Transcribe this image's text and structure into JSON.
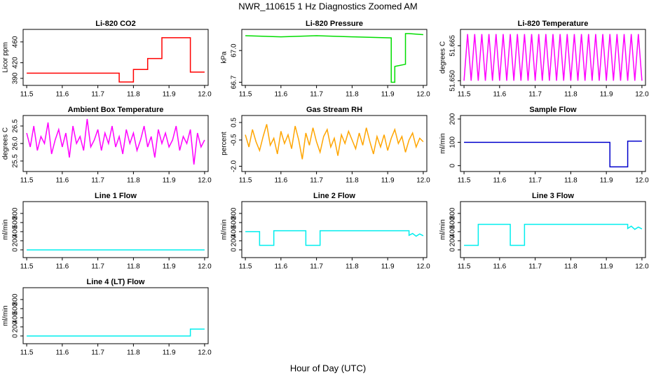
{
  "title": "NWR_110615  1 Hz Diagnostics Zoomed AM",
  "xlabel": "Hour of Day (UTC)",
  "chart_data": [
    {
      "type": "line",
      "title": "Li-820 CO2",
      "ylabel": "Licor ppm",
      "color": "#ff0000",
      "x": [
        11.5,
        11.76,
        11.76,
        11.8,
        11.8,
        11.84,
        11.84,
        11.88,
        11.88,
        11.96,
        11.96,
        12.0
      ],
      "values": [
        400,
        400,
        383,
        383,
        407,
        407,
        428,
        428,
        468,
        468,
        402,
        402
      ],
      "xlim": [
        11.49,
        12.01
      ],
      "xticks": [
        11.5,
        11.6,
        11.7,
        11.8,
        11.9,
        {
          "value": 12,
          "label": "12.0"
        }
      ],
      "ylim": [
        376.5,
        484
      ],
      "yticks": [
        390,
        420,
        460
      ]
    },
    {
      "type": "line",
      "title": "Li-820 Pressure",
      "ylabel": "kPa",
      "color": "#00dd00",
      "x": [
        11.5,
        11.6,
        11.7,
        11.8,
        11.91,
        11.91,
        11.92,
        11.92,
        11.95,
        11.95,
        11.96,
        12.0
      ],
      "values": [
        67.14,
        67.13,
        67.14,
        67.13,
        67.12,
        66.7,
        66.7,
        66.85,
        66.87,
        67.16,
        67.16,
        67.15
      ],
      "xlim": [
        11.49,
        12.01
      ],
      "xticks": [
        11.5,
        11.6,
        11.7,
        11.8,
        11.9,
        {
          "value": 12,
          "label": "12.0"
        }
      ],
      "ylim": [
        66.67,
        67.2
      ],
      "yticks": [
        66.7,
        {
          "value": 67,
          "label": "67.0"
        }
      ]
    },
    {
      "type": "line",
      "title": "Li-820 Temperature",
      "ylabel": "degrees C",
      "color": "#ff00ff",
      "x": [
        11.5,
        11.51,
        11.52,
        11.53,
        11.54,
        11.55,
        11.56,
        11.57,
        11.58,
        11.59,
        11.6,
        11.61,
        11.62,
        11.63,
        11.64,
        11.65,
        11.66,
        11.67,
        11.68,
        11.69,
        11.7,
        11.71,
        11.72,
        11.73,
        11.74,
        11.75,
        11.76,
        11.77,
        11.78,
        11.79,
        11.8,
        11.81,
        11.82,
        11.83,
        11.84,
        11.85,
        11.86,
        11.87,
        11.88,
        11.89,
        11.9,
        11.91,
        11.92,
        11.93,
        11.94,
        11.95,
        11.96,
        11.97,
        11.98,
        11.99,
        12.0
      ],
      "values": [
        51.65,
        51.67,
        51.65,
        51.67,
        51.65,
        51.67,
        51.65,
        51.67,
        51.65,
        51.67,
        51.65,
        51.67,
        51.65,
        51.67,
        51.65,
        51.67,
        51.65,
        51.67,
        51.65,
        51.67,
        51.65,
        51.67,
        51.65,
        51.67,
        51.65,
        51.67,
        51.65,
        51.67,
        51.65,
        51.67,
        51.65,
        51.67,
        51.65,
        51.67,
        51.65,
        51.67,
        51.65,
        51.67,
        51.65,
        51.67,
        51.65,
        51.67,
        51.65,
        51.67,
        51.65,
        51.67,
        51.65,
        51.67,
        51.65,
        51.67,
        51.65
      ],
      "xlim": [
        11.49,
        12.01
      ],
      "xticks": [
        11.5,
        11.6,
        11.7,
        11.8,
        11.9,
        {
          "value": 12,
          "label": "12.0"
        }
      ],
      "ylim": [
        51.648,
        51.672
      ],
      "yticks": [
        {
          "value": 51.65,
          "label": "51.650"
        },
        51.665
      ]
    },
    {
      "type": "line",
      "title": "Ambient Box Temperature",
      "ylabel": "degrees C",
      "color": "#ff00ff",
      "x": [
        11.5,
        11.51,
        11.52,
        11.53,
        11.54,
        11.55,
        11.56,
        11.57,
        11.58,
        11.59,
        11.6,
        11.61,
        11.62,
        11.63,
        11.64,
        11.65,
        11.66,
        11.67,
        11.68,
        11.69,
        11.7,
        11.71,
        11.72,
        11.73,
        11.74,
        11.75,
        11.76,
        11.77,
        11.78,
        11.79,
        11.8,
        11.81,
        11.82,
        11.83,
        11.84,
        11.85,
        11.86,
        11.87,
        11.88,
        11.89,
        11.9,
        11.91,
        11.92,
        11.93,
        11.94,
        11.95,
        11.96,
        11.97,
        11.98,
        11.99,
        12.0
      ],
      "values": [
        26.3,
        25.9,
        26.5,
        25.8,
        26.2,
        26.0,
        26.6,
        25.7,
        26.1,
        26.4,
        25.9,
        26.3,
        25.6,
        26.5,
        26.0,
        26.2,
        25.8,
        26.7,
        25.9,
        26.1,
        26.4,
        25.8,
        26.3,
        26.0,
        26.5,
        25.9,
        26.2,
        25.7,
        26.4,
        26.0,
        26.3,
        25.8,
        26.1,
        26.5,
        25.9,
        26.2,
        25.6,
        26.4,
        26.0,
        26.3,
        25.9,
        26.1,
        26.5,
        25.8,
        26.2,
        26.0,
        26.4,
        25.4,
        26.3,
        25.9,
        26.1
      ],
      "xlim": [
        11.49,
        12.01
      ],
      "xticks": [
        11.5,
        11.6,
        11.7,
        11.8,
        11.9,
        {
          "value": 12,
          "label": "12.0"
        }
      ],
      "ylim": [
        25.2,
        26.8
      ],
      "yticks": [
        25.5,
        {
          "value": 26,
          "label": "26.0"
        },
        26.5
      ]
    },
    {
      "type": "line",
      "title": "Gas Stream RH",
      "ylabel": "percent",
      "color": "#ffa500",
      "x": [
        11.5,
        11.51,
        11.52,
        11.53,
        11.54,
        11.55,
        11.56,
        11.57,
        11.58,
        11.59,
        11.6,
        11.61,
        11.62,
        11.63,
        11.64,
        11.65,
        11.66,
        11.67,
        11.68,
        11.69,
        11.7,
        11.71,
        11.72,
        11.73,
        11.74,
        11.75,
        11.76,
        11.77,
        11.78,
        11.79,
        11.8,
        11.81,
        11.82,
        11.83,
        11.84,
        11.85,
        11.86,
        11.87,
        11.88,
        11.89,
        11.9,
        11.91,
        11.92,
        11.93,
        11.94,
        11.95,
        11.96,
        11.97,
        11.98,
        11.99,
        12.0
      ],
      "values": [
        -0.2,
        -0.9,
        0.1,
        -0.6,
        -1.1,
        -0.3,
        0.4,
        -0.8,
        -0.4,
        -1.3,
        0.0,
        -0.7,
        -0.2,
        -1.0,
        0.3,
        -0.5,
        -1.6,
        -0.1,
        -0.8,
        0.2,
        -0.6,
        -1.2,
        -0.3,
        0.1,
        -0.9,
        -0.4,
        -1.4,
        -0.2,
        -0.7,
        0.0,
        -0.5,
        -1.0,
        -0.1,
        -0.8,
        0.2,
        -0.6,
        -1.3,
        -0.3,
        -0.9,
        -0.2,
        -1.1,
        -0.4,
        0.1,
        -0.7,
        -0.3,
        -1.2,
        -0.5,
        -0.1,
        -0.9,
        -0.4,
        -0.6
      ],
      "xlim": [
        11.49,
        12.01
      ],
      "xticks": [
        11.5,
        11.6,
        11.7,
        11.8,
        11.9,
        {
          "value": 12,
          "label": "12.0"
        }
      ],
      "ylim": [
        -2.3,
        0.9
      ],
      "yticks": [
        {
          "value": -2,
          "label": "-2.0"
        },
        -0.5,
        0.5
      ]
    },
    {
      "type": "line",
      "title": "Sample Flow",
      "ylabel": "ml/min",
      "color": "#0000cc",
      "x": [
        11.5,
        11.91,
        11.91,
        11.96,
        11.96,
        12.0
      ],
      "values": [
        100,
        100,
        -5,
        -5,
        105,
        105
      ],
      "xlim": [
        11.49,
        12.01
      ],
      "xticks": [
        11.5,
        11.6,
        11.7,
        11.8,
        11.9,
        {
          "value": 12,
          "label": "12.0"
        }
      ],
      "ylim": [
        -25,
        215
      ],
      "yticks": [
        0,
        100,
        200
      ]
    },
    {
      "type": "line",
      "title": "Line 1 Flow",
      "ylabel": "ml/min",
      "color": "#00eeee",
      "x": [
        11.5,
        12.0
      ],
      "values": [
        0,
        0
      ],
      "xlim": [
        11.49,
        12.01
      ],
      "xticks": [
        11.5,
        11.6,
        11.7,
        11.8,
        11.9,
        {
          "value": 12,
          "label": "12.0"
        }
      ],
      "ylim": [
        -170,
        1060
      ],
      "yticks": [
        0,
        200,
        400,
        600,
        800
      ]
    },
    {
      "type": "line",
      "title": "Line 2 Flow",
      "ylabel": "ml/min",
      "color": "#00eeee",
      "x": [
        11.5,
        11.54,
        11.54,
        11.58,
        11.58,
        11.67,
        11.67,
        11.71,
        11.71,
        11.96,
        11.96,
        11.97,
        11.98,
        11.99,
        12.0
      ],
      "values": [
        400,
        400,
        100,
        100,
        420,
        420,
        100,
        100,
        420,
        420,
        320,
        360,
        300,
        350,
        310
      ],
      "xlim": [
        11.49,
        12.01
      ],
      "xticks": [
        11.5,
        11.6,
        11.7,
        11.8,
        11.9,
        {
          "value": 12,
          "label": "12.0"
        }
      ],
      "ylim": [
        -170,
        1060
      ],
      "yticks": [
        0,
        200,
        400,
        600,
        800
      ]
    },
    {
      "type": "line",
      "title": "Line 3 Flow",
      "ylabel": "ml/min",
      "color": "#00eeee",
      "x": [
        11.5,
        11.54,
        11.54,
        11.63,
        11.63,
        11.67,
        11.67,
        11.96,
        11.96,
        11.97,
        11.98,
        11.99,
        12.0
      ],
      "values": [
        100,
        100,
        560,
        560,
        100,
        100,
        560,
        560,
        470,
        520,
        450,
        500,
        460
      ],
      "xlim": [
        11.49,
        12.01
      ],
      "xticks": [
        11.5,
        11.6,
        11.7,
        11.8,
        11.9,
        {
          "value": 12,
          "label": "12.0"
        }
      ],
      "ylim": [
        -170,
        1060
      ],
      "yticks": [
        0,
        200,
        400,
        600,
        800
      ]
    },
    {
      "type": "line",
      "title": "Line 4 (LT) Flow",
      "ylabel": "ml/min",
      "color": "#00eeee",
      "x": [
        11.5,
        11.96,
        11.96,
        12.0
      ],
      "values": [
        0,
        0,
        150,
        150
      ],
      "xlim": [
        11.49,
        12.01
      ],
      "xticks": [
        11.5,
        11.6,
        11.7,
        11.8,
        11.9,
        {
          "value": 12,
          "label": "12.0"
        }
      ],
      "ylim": [
        -170,
        1060
      ],
      "yticks": [
        0,
        200,
        400,
        600,
        800
      ]
    }
  ]
}
